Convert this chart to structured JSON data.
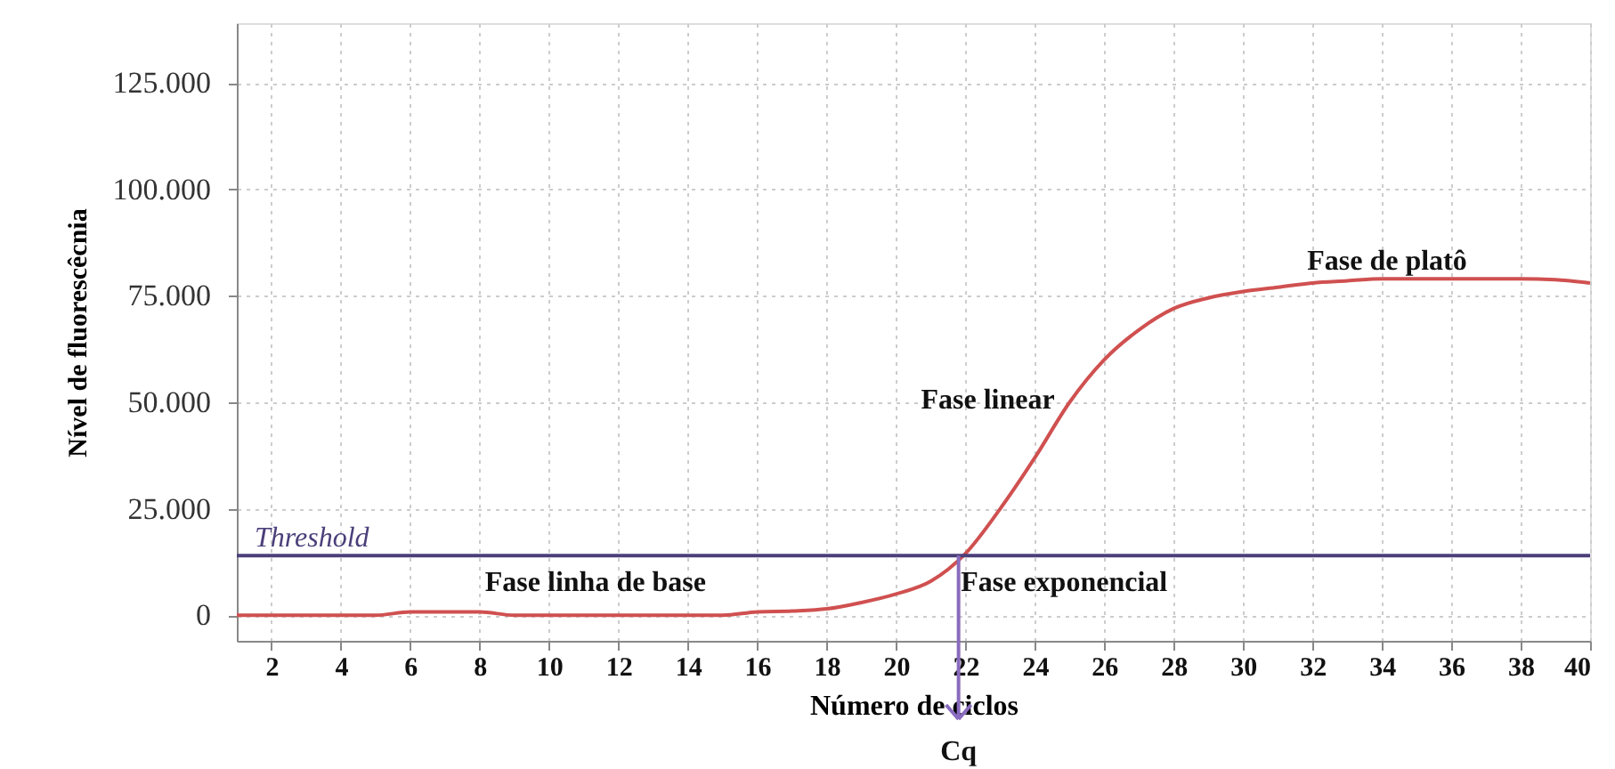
{
  "chart_data": {
    "type": "line",
    "xlabel": "Número de ciclos",
    "ylabel": "Nível de fluorescêcnia",
    "x": [
      1,
      2,
      3,
      4,
      5,
      6,
      7,
      8,
      9,
      10,
      11,
      12,
      13,
      14,
      15,
      16,
      17,
      18,
      19,
      20,
      21,
      22,
      23,
      24,
      25,
      26,
      27,
      28,
      29,
      30,
      31,
      32,
      33,
      34,
      35,
      36,
      37,
      38,
      39,
      40
    ],
    "series": [
      {
        "color": "#d05050",
        "values": [
          0,
          0,
          0,
          0,
          0,
          800,
          800,
          800,
          0,
          0,
          0,
          0,
          0,
          0,
          0,
          800,
          1000,
          1500,
          3000,
          5000,
          8000,
          14500,
          25000,
          37000,
          50000,
          60000,
          67000,
          72000,
          74500,
          76000,
          77000,
          78000,
          78500,
          79000,
          79000,
          79000,
          79000,
          79000,
          78800,
          78000
        ]
      }
    ],
    "xlim": [
      1,
      40
    ],
    "xticks": [
      2,
      4,
      6,
      8,
      10,
      12,
      14,
      16,
      18,
      20,
      22,
      24,
      26,
      28,
      30,
      32,
      34,
      36,
      38,
      40
    ],
    "ylim": [
      -6000,
      139000
    ],
    "yticks": [
      {
        "value": 0,
        "label": "0"
      },
      {
        "value": 25000,
        "label": "25.000"
      },
      {
        "value": 50000,
        "label": "50.000"
      },
      {
        "value": 75000,
        "label": "75.000"
      },
      {
        "value": 100000,
        "label": "100.000"
      },
      {
        "value": 125000,
        "label": "125.000"
      }
    ],
    "ref_lines": [
      {
        "axis": "y",
        "value": 14000,
        "label": "Threshold",
        "color": "#4b3f7a"
      },
      {
        "axis": "x",
        "value": 21.8,
        "label": "Cq",
        "color": "#8a6bbf"
      }
    ],
    "annotations": [
      "Fase linha de base",
      "Fase exponencial",
      "Fase linear",
      "Fase de platô"
    ],
    "grid": true,
    "marker": "none",
    "line_style": "solid"
  }
}
